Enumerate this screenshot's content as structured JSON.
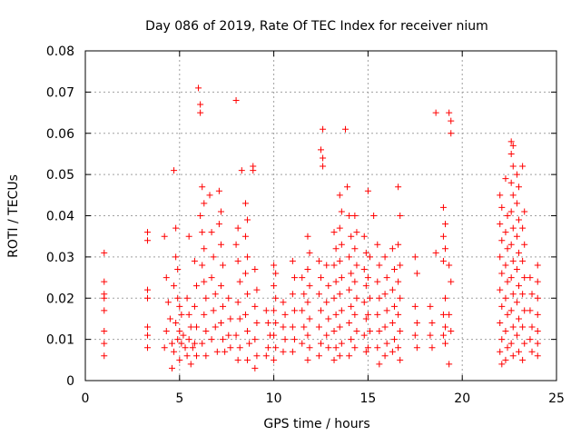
{
  "chart_data": {
    "type": "scatter",
    "title": "Day 086 of 2019, Rate Of TEC Index for receiver nium",
    "xlabel": "GPS time / hours",
    "ylabel": "ROTI / TECUs",
    "xlim": [
      0,
      25
    ],
    "ylim": [
      0,
      0.08
    ],
    "xticks": [
      "0",
      "5",
      "10",
      "15",
      "20",
      "25"
    ],
    "yticks": [
      "0",
      "0.01",
      "0.02",
      "0.03",
      "0.04",
      "0.05",
      "0.06",
      "0.07",
      "0.08"
    ],
    "grid": true,
    "marker": "plus",
    "color": "#ff0000",
    "points": [
      [
        1.0,
        0.031
      ],
      [
        1.0,
        0.024
      ],
      [
        1.0,
        0.021
      ],
      [
        1.0,
        0.02
      ],
      [
        1.0,
        0.017
      ],
      [
        1.0,
        0.012
      ],
      [
        1.0,
        0.009
      ],
      [
        1.0,
        0.006
      ],
      [
        3.3,
        0.036
      ],
      [
        3.3,
        0.034
      ],
      [
        3.3,
        0.022
      ],
      [
        3.3,
        0.02
      ],
      [
        3.3,
        0.013
      ],
      [
        3.3,
        0.011
      ],
      [
        3.3,
        0.008
      ],
      [
        4.2,
        0.035
      ],
      [
        4.3,
        0.025
      ],
      [
        4.4,
        0.019
      ],
      [
        4.5,
        0.015
      ],
      [
        4.3,
        0.012
      ],
      [
        4.6,
        0.009
      ],
      [
        4.2,
        0.008
      ],
      [
        4.7,
        0.051
      ],
      [
        4.8,
        0.037
      ],
      [
        4.8,
        0.03
      ],
      [
        4.9,
        0.027
      ],
      [
        4.7,
        0.023
      ],
      [
        4.9,
        0.02
      ],
      [
        5.0,
        0.018
      ],
      [
        5.1,
        0.016
      ],
      [
        4.8,
        0.014
      ],
      [
        5.0,
        0.012
      ],
      [
        5.2,
        0.011
      ],
      [
        4.9,
        0.01
      ],
      [
        5.1,
        0.009
      ],
      [
        5.3,
        0.008
      ],
      [
        4.7,
        0.007
      ],
      [
        5.0,
        0.005
      ],
      [
        4.6,
        0.003
      ],
      [
        5.4,
        0.02
      ],
      [
        5.5,
        0.016
      ],
      [
        5.6,
        0.013
      ],
      [
        5.5,
        0.01
      ],
      [
        5.7,
        0.008
      ],
      [
        5.4,
        0.006
      ],
      [
        5.6,
        0.004
      ],
      [
        5.5,
        0.035
      ],
      [
        5.8,
        0.029
      ],
      [
        5.9,
        0.023
      ],
      [
        5.8,
        0.018
      ],
      [
        5.9,
        0.013
      ],
      [
        5.8,
        0.009
      ],
      [
        5.9,
        0.006
      ],
      [
        6.0,
        0.071
      ],
      [
        6.1,
        0.067
      ],
      [
        6.1,
        0.065
      ],
      [
        6.2,
        0.047
      ],
      [
        6.3,
        0.043
      ],
      [
        6.1,
        0.04
      ],
      [
        6.2,
        0.036
      ],
      [
        6.3,
        0.032
      ],
      [
        6.2,
        0.028
      ],
      [
        6.3,
        0.024
      ],
      [
        6.4,
        0.02
      ],
      [
        6.3,
        0.016
      ],
      [
        6.4,
        0.012
      ],
      [
        6.2,
        0.009
      ],
      [
        6.4,
        0.006
      ],
      [
        6.6,
        0.045
      ],
      [
        6.7,
        0.036
      ],
      [
        6.8,
        0.03
      ],
      [
        6.7,
        0.025
      ],
      [
        6.9,
        0.021
      ],
      [
        6.8,
        0.017
      ],
      [
        6.9,
        0.013
      ],
      [
        6.7,
        0.01
      ],
      [
        7.0,
        0.007
      ],
      [
        7.1,
        0.046
      ],
      [
        7.2,
        0.041
      ],
      [
        7.1,
        0.038
      ],
      [
        7.2,
        0.033
      ],
      [
        7.3,
        0.028
      ],
      [
        7.2,
        0.023
      ],
      [
        7.3,
        0.018
      ],
      [
        7.2,
        0.014
      ],
      [
        7.3,
        0.01
      ],
      [
        7.4,
        0.007
      ],
      [
        7.6,
        0.02
      ],
      [
        7.7,
        0.015
      ],
      [
        7.6,
        0.011
      ],
      [
        7.7,
        0.008
      ],
      [
        8.0,
        0.068
      ],
      [
        8.1,
        0.037
      ],
      [
        8.0,
        0.033
      ],
      [
        8.1,
        0.029
      ],
      [
        8.2,
        0.024
      ],
      [
        8.1,
        0.019
      ],
      [
        8.2,
        0.015
      ],
      [
        8.0,
        0.011
      ],
      [
        8.2,
        0.008
      ],
      [
        8.1,
        0.005
      ],
      [
        8.3,
        0.051
      ],
      [
        8.5,
        0.043
      ],
      [
        8.6,
        0.039
      ],
      [
        8.5,
        0.035
      ],
      [
        8.6,
        0.03
      ],
      [
        8.5,
        0.026
      ],
      [
        8.6,
        0.021
      ],
      [
        8.5,
        0.016
      ],
      [
        8.6,
        0.012
      ],
      [
        8.7,
        0.009
      ],
      [
        8.6,
        0.005
      ],
      [
        8.9,
        0.052
      ],
      [
        8.9,
        0.051
      ],
      [
        9.0,
        0.027
      ],
      [
        9.1,
        0.022
      ],
      [
        9.0,
        0.018
      ],
      [
        9.1,
        0.014
      ],
      [
        9.0,
        0.01
      ],
      [
        9.1,
        0.006
      ],
      [
        9.0,
        0.003
      ],
      [
        9.6,
        0.017
      ],
      [
        9.7,
        0.014
      ],
      [
        9.8,
        0.011
      ],
      [
        9.7,
        0.008
      ],
      [
        9.6,
        0.006
      ],
      [
        10.0,
        0.028
      ],
      [
        10.1,
        0.026
      ],
      [
        10.0,
        0.023
      ],
      [
        10.1,
        0.02
      ],
      [
        10.0,
        0.017
      ],
      [
        10.1,
        0.014
      ],
      [
        10.0,
        0.011
      ],
      [
        10.1,
        0.008
      ],
      [
        10.0,
        0.005
      ],
      [
        10.5,
        0.019
      ],
      [
        10.6,
        0.016
      ],
      [
        10.5,
        0.013
      ],
      [
        10.6,
        0.01
      ],
      [
        10.5,
        0.007
      ],
      [
        11.0,
        0.029
      ],
      [
        11.1,
        0.025
      ],
      [
        11.0,
        0.021
      ],
      [
        11.1,
        0.017
      ],
      [
        11.0,
        0.013
      ],
      [
        11.1,
        0.01
      ],
      [
        11.0,
        0.007
      ],
      [
        11.5,
        0.025
      ],
      [
        11.6,
        0.021
      ],
      [
        11.5,
        0.017
      ],
      [
        11.6,
        0.013
      ],
      [
        11.5,
        0.009
      ],
      [
        11.8,
        0.035
      ],
      [
        11.9,
        0.031
      ],
      [
        11.8,
        0.027
      ],
      [
        11.9,
        0.023
      ],
      [
        11.8,
        0.019
      ],
      [
        11.9,
        0.015
      ],
      [
        11.8,
        0.011
      ],
      [
        11.9,
        0.008
      ],
      [
        11.8,
        0.005
      ],
      [
        12.4,
        0.029
      ],
      [
        12.5,
        0.025
      ],
      [
        12.4,
        0.021
      ],
      [
        12.5,
        0.017
      ],
      [
        12.4,
        0.013
      ],
      [
        12.5,
        0.009
      ],
      [
        12.4,
        0.006
      ],
      [
        12.6,
        0.061
      ],
      [
        12.5,
        0.056
      ],
      [
        12.6,
        0.054
      ],
      [
        12.6,
        0.052
      ],
      [
        12.8,
        0.028
      ],
      [
        12.9,
        0.023
      ],
      [
        12.8,
        0.019
      ],
      [
        12.9,
        0.015
      ],
      [
        12.8,
        0.011
      ],
      [
        12.9,
        0.008
      ],
      [
        13.2,
        0.036
      ],
      [
        13.3,
        0.032
      ],
      [
        13.2,
        0.028
      ],
      [
        13.3,
        0.024
      ],
      [
        13.2,
        0.02
      ],
      [
        13.3,
        0.016
      ],
      [
        13.2,
        0.012
      ],
      [
        13.3,
        0.008
      ],
      [
        13.2,
        0.005
      ],
      [
        13.5,
        0.045
      ],
      [
        13.6,
        0.041
      ],
      [
        13.5,
        0.037
      ],
      [
        13.6,
        0.033
      ],
      [
        13.5,
        0.029
      ],
      [
        13.6,
        0.025
      ],
      [
        13.5,
        0.021
      ],
      [
        13.6,
        0.017
      ],
      [
        13.5,
        0.013
      ],
      [
        13.6,
        0.009
      ],
      [
        13.5,
        0.006
      ],
      [
        13.8,
        0.061
      ],
      [
        13.9,
        0.047
      ],
      [
        14.0,
        0.04
      ],
      [
        14.1,
        0.035
      ],
      [
        14.0,
        0.03
      ],
      [
        14.1,
        0.026
      ],
      [
        14.0,
        0.022
      ],
      [
        14.1,
        0.018
      ],
      [
        14.0,
        0.014
      ],
      [
        14.1,
        0.01
      ],
      [
        14.0,
        0.006
      ],
      [
        14.3,
        0.04
      ],
      [
        14.4,
        0.036
      ],
      [
        14.3,
        0.032
      ],
      [
        14.4,
        0.028
      ],
      [
        14.3,
        0.024
      ],
      [
        14.4,
        0.02
      ],
      [
        14.3,
        0.016
      ],
      [
        14.4,
        0.012
      ],
      [
        14.3,
        0.008
      ],
      [
        14.8,
        0.035
      ],
      [
        14.9,
        0.031
      ],
      [
        14.8,
        0.027
      ],
      [
        14.9,
        0.023
      ],
      [
        14.8,
        0.019
      ],
      [
        14.9,
        0.015
      ],
      [
        14.8,
        0.011
      ],
      [
        14.9,
        0.007
      ],
      [
        15.0,
        0.046
      ],
      [
        15.1,
        0.03
      ],
      [
        15.0,
        0.025
      ],
      [
        15.1,
        0.02
      ],
      [
        15.0,
        0.016
      ],
      [
        15.1,
        0.012
      ],
      [
        15.0,
        0.008
      ],
      [
        15.3,
        0.04
      ],
      [
        15.5,
        0.033
      ],
      [
        15.6,
        0.028
      ],
      [
        15.5,
        0.024
      ],
      [
        15.6,
        0.02
      ],
      [
        15.5,
        0.016
      ],
      [
        15.6,
        0.012
      ],
      [
        15.5,
        0.008
      ],
      [
        15.6,
        0.004
      ],
      [
        15.9,
        0.03
      ],
      [
        16.0,
        0.025
      ],
      [
        15.9,
        0.021
      ],
      [
        16.0,
        0.017
      ],
      [
        15.9,
        0.013
      ],
      [
        16.0,
        0.009
      ],
      [
        15.9,
        0.006
      ],
      [
        16.3,
        0.032
      ],
      [
        16.4,
        0.027
      ],
      [
        16.3,
        0.022
      ],
      [
        16.4,
        0.018
      ],
      [
        16.3,
        0.014
      ],
      [
        16.4,
        0.01
      ],
      [
        16.3,
        0.007
      ],
      [
        16.6,
        0.047
      ],
      [
        16.7,
        0.04
      ],
      [
        16.6,
        0.033
      ],
      [
        16.7,
        0.028
      ],
      [
        16.6,
        0.024
      ],
      [
        16.7,
        0.02
      ],
      [
        16.6,
        0.016
      ],
      [
        16.7,
        0.012
      ],
      [
        16.6,
        0.008
      ],
      [
        16.7,
        0.005
      ],
      [
        17.5,
        0.03
      ],
      [
        17.6,
        0.026
      ],
      [
        17.5,
        0.018
      ],
      [
        17.6,
        0.014
      ],
      [
        17.5,
        0.011
      ],
      [
        17.6,
        0.008
      ],
      [
        18.3,
        0.018
      ],
      [
        18.4,
        0.014
      ],
      [
        18.3,
        0.011
      ],
      [
        18.4,
        0.008
      ],
      [
        18.6,
        0.065
      ],
      [
        18.6,
        0.031
      ],
      [
        19.0,
        0.042
      ],
      [
        19.1,
        0.038
      ],
      [
        19.0,
        0.035
      ],
      [
        19.1,
        0.032
      ],
      [
        19.0,
        0.029
      ],
      [
        19.1,
        0.02
      ],
      [
        19.0,
        0.016
      ],
      [
        19.1,
        0.013
      ],
      [
        19.0,
        0.011
      ],
      [
        19.1,
        0.009
      ],
      [
        19.3,
        0.065
      ],
      [
        19.4,
        0.063
      ],
      [
        19.4,
        0.06
      ],
      [
        19.3,
        0.028
      ],
      [
        19.4,
        0.024
      ],
      [
        19.3,
        0.016
      ],
      [
        19.4,
        0.012
      ],
      [
        19.3,
        0.004
      ],
      [
        22.0,
        0.045
      ],
      [
        22.1,
        0.042
      ],
      [
        22.0,
        0.038
      ],
      [
        22.1,
        0.034
      ],
      [
        22.0,
        0.03
      ],
      [
        22.1,
        0.026
      ],
      [
        22.0,
        0.022
      ],
      [
        22.1,
        0.018
      ],
      [
        22.0,
        0.014
      ],
      [
        22.1,
        0.01
      ],
      [
        22.0,
        0.007
      ],
      [
        22.1,
        0.004
      ],
      [
        22.3,
        0.049
      ],
      [
        22.4,
        0.04
      ],
      [
        22.3,
        0.036
      ],
      [
        22.4,
        0.032
      ],
      [
        22.3,
        0.028
      ],
      [
        22.4,
        0.024
      ],
      [
        22.3,
        0.02
      ],
      [
        22.4,
        0.016
      ],
      [
        22.3,
        0.012
      ],
      [
        22.4,
        0.008
      ],
      [
        22.3,
        0.005
      ],
      [
        22.6,
        0.058
      ],
      [
        22.7,
        0.057
      ],
      [
        22.6,
        0.055
      ],
      [
        22.7,
        0.052
      ],
      [
        22.6,
        0.048
      ],
      [
        22.7,
        0.045
      ],
      [
        22.6,
        0.041
      ],
      [
        22.7,
        0.037
      ],
      [
        22.6,
        0.033
      ],
      [
        22.7,
        0.029
      ],
      [
        22.6,
        0.025
      ],
      [
        22.7,
        0.021
      ],
      [
        22.6,
        0.017
      ],
      [
        22.7,
        0.013
      ],
      [
        22.6,
        0.009
      ],
      [
        22.7,
        0.006
      ],
      [
        22.9,
        0.05
      ],
      [
        23.0,
        0.047
      ],
      [
        22.9,
        0.043
      ],
      [
        23.0,
        0.039
      ],
      [
        22.9,
        0.035
      ],
      [
        23.0,
        0.031
      ],
      [
        22.9,
        0.027
      ],
      [
        23.0,
        0.023
      ],
      [
        22.9,
        0.019
      ],
      [
        23.0,
        0.015
      ],
      [
        22.9,
        0.011
      ],
      [
        23.0,
        0.007
      ],
      [
        23.2,
        0.052
      ],
      [
        23.3,
        0.041
      ],
      [
        23.2,
        0.037
      ],
      [
        23.3,
        0.033
      ],
      [
        23.2,
        0.029
      ],
      [
        23.3,
        0.025
      ],
      [
        23.2,
        0.021
      ],
      [
        23.3,
        0.017
      ],
      [
        23.2,
        0.013
      ],
      [
        23.3,
        0.009
      ],
      [
        23.2,
        0.005
      ],
      [
        23.6,
        0.025
      ],
      [
        23.7,
        0.021
      ],
      [
        23.6,
        0.017
      ],
      [
        23.7,
        0.013
      ],
      [
        23.6,
        0.01
      ],
      [
        23.7,
        0.007
      ],
      [
        24.0,
        0.028
      ],
      [
        24.0,
        0.024
      ],
      [
        24.0,
        0.02
      ],
      [
        24.0,
        0.016
      ],
      [
        24.0,
        0.012
      ],
      [
        24.0,
        0.009
      ],
      [
        24.0,
        0.006
      ]
    ]
  }
}
